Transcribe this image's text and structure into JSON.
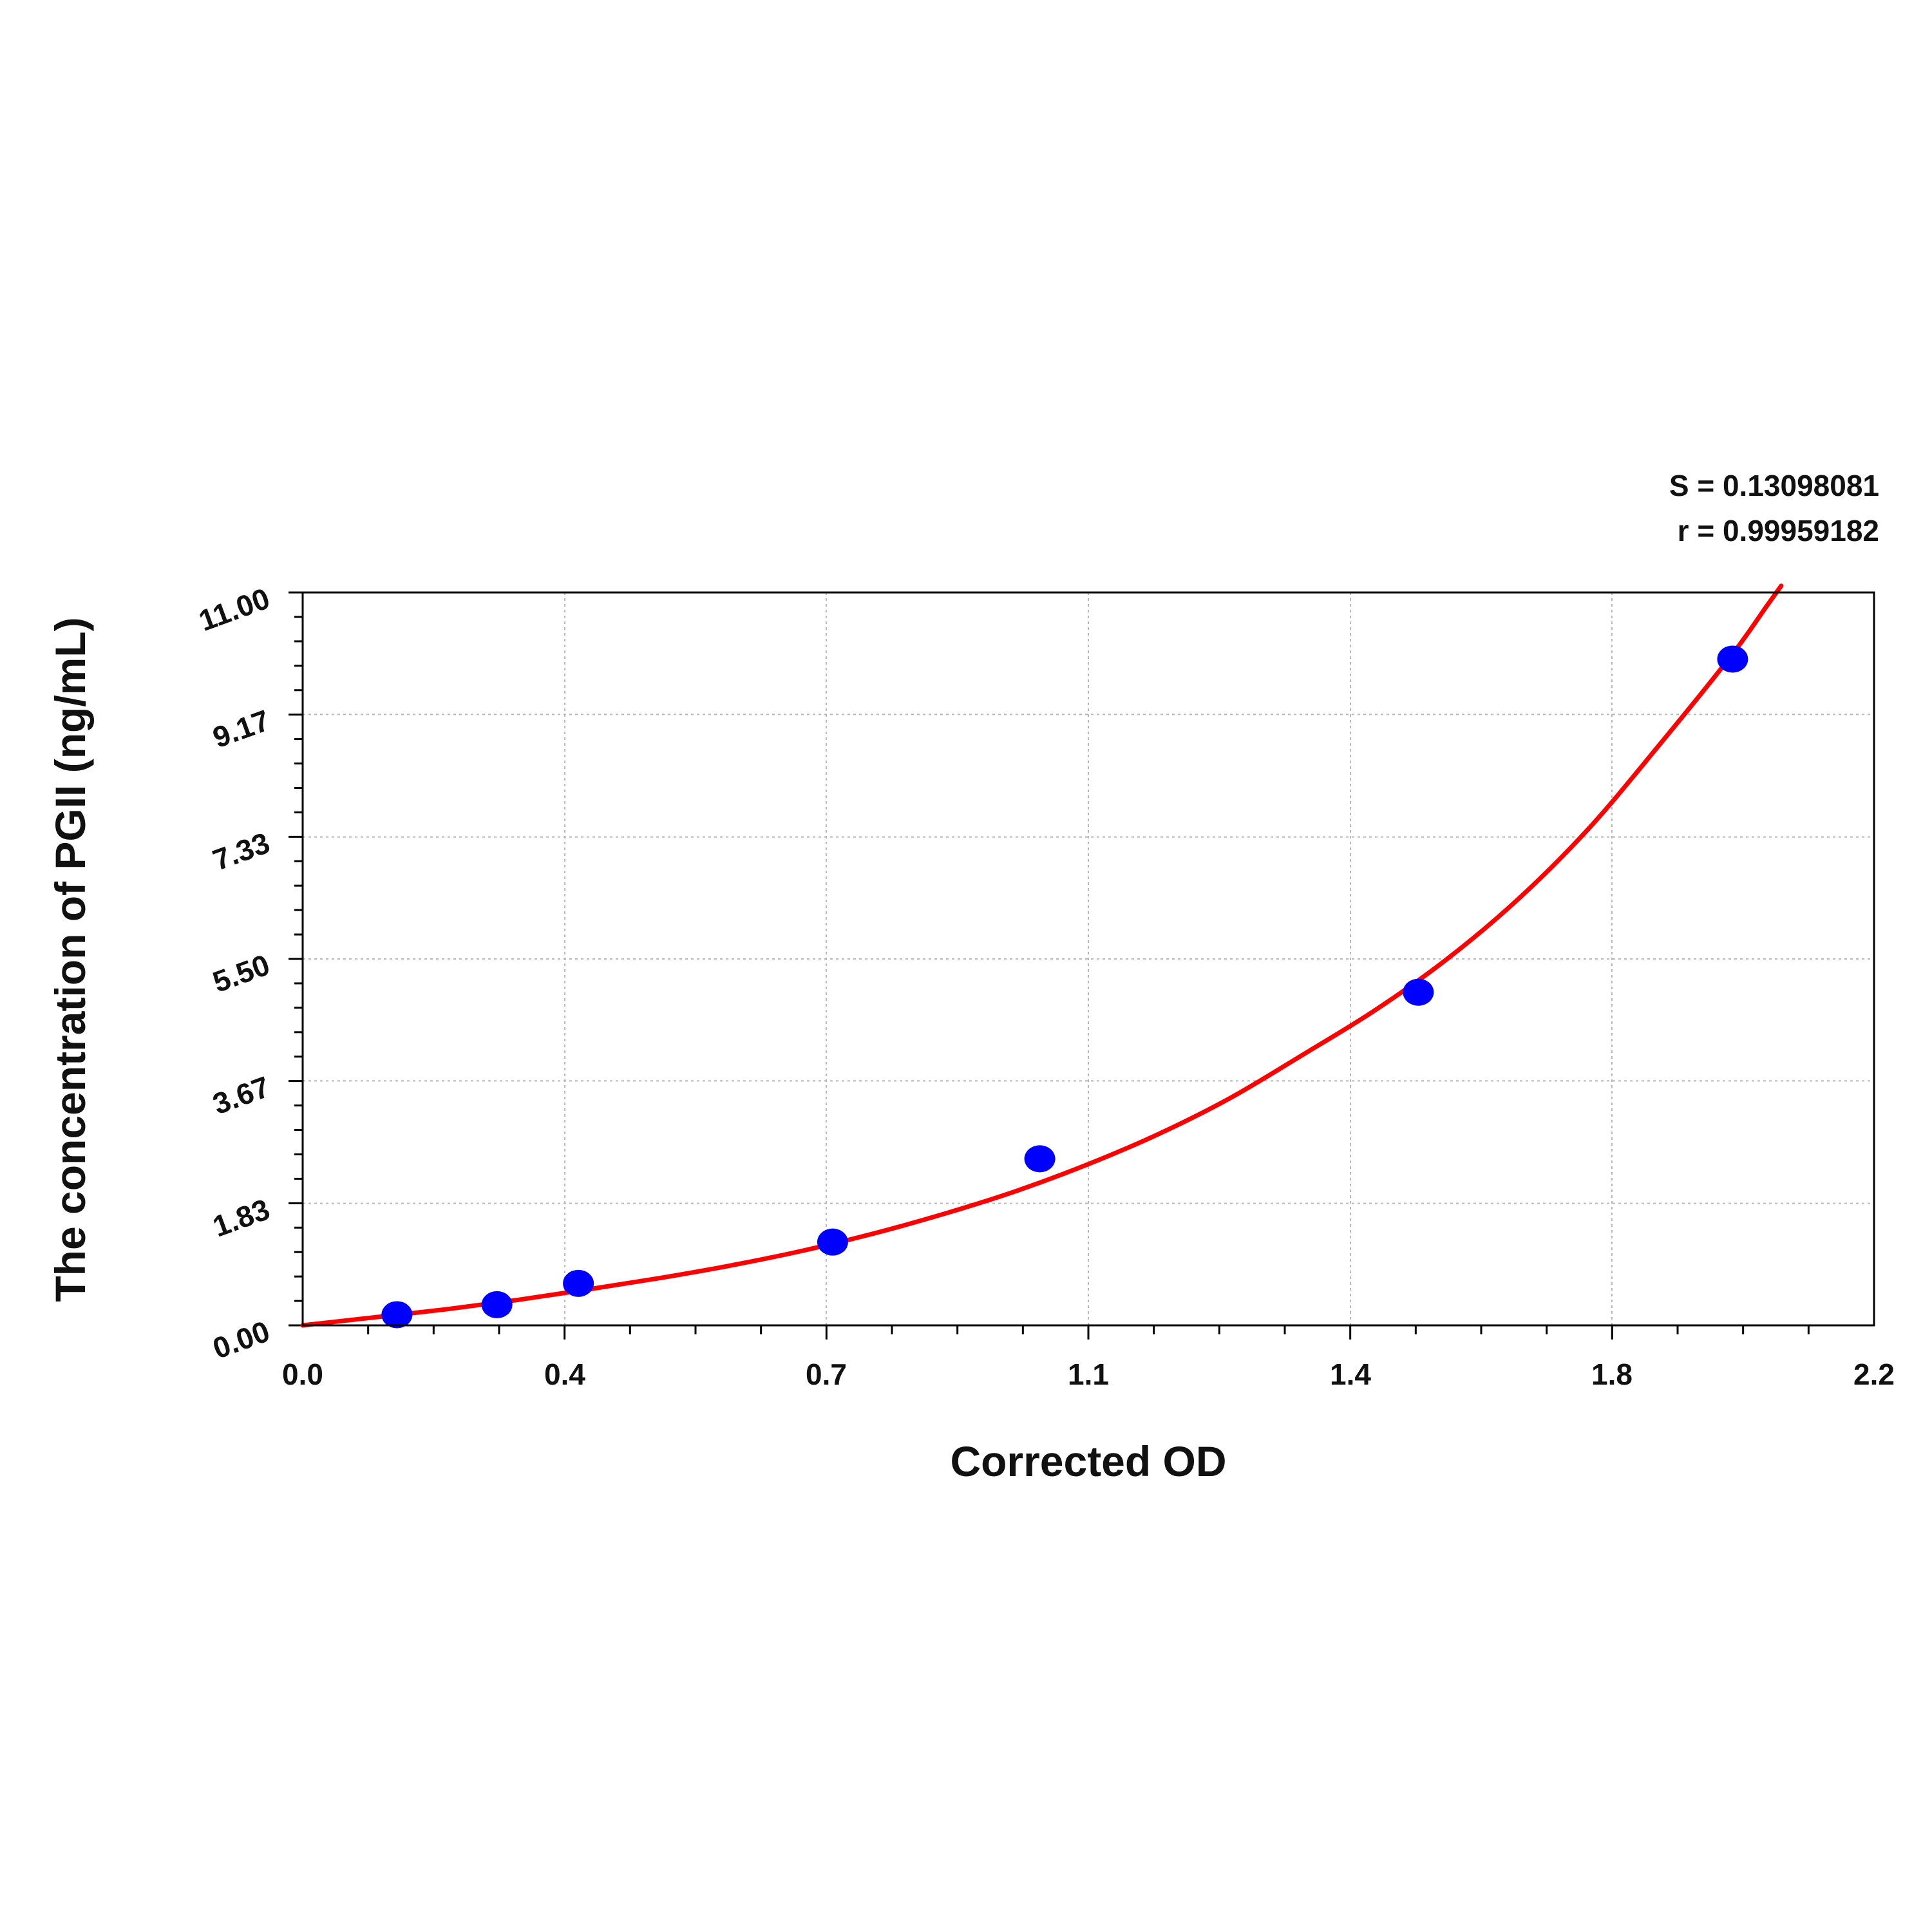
{
  "stats": {
    "s_line": "S = 0.13098081",
    "r_line": "r = 0.99959182"
  },
  "chart_data": {
    "type": "scatter",
    "xlabel": "Corrected OD",
    "ylabel": "The concentration of PGII (ng/mL)",
    "xlim": [
      0.0,
      2.2
    ],
    "ylim": [
      0.0,
      11.0
    ],
    "x_ticks": [
      "0.0",
      "0.4",
      "0.7",
      "1.1",
      "1.4",
      "1.8",
      "2.2"
    ],
    "x_tick_values": [
      0.0,
      0.367,
      0.733,
      1.1,
      1.467,
      1.833,
      2.2
    ],
    "y_ticks": [
      "0.00",
      "1.83",
      "3.67",
      "5.50",
      "7.33",
      "9.17",
      "11.00"
    ],
    "y_tick_values": [
      0.0,
      1.83,
      3.67,
      5.5,
      7.33,
      9.17,
      11.0
    ],
    "grid": true,
    "series": [
      {
        "kind": "points",
        "color": "#0000ff",
        "points": [
          {
            "x": 0.132,
            "y": 0.16
          },
          {
            "x": 0.272,
            "y": 0.31
          },
          {
            "x": 0.386,
            "y": 0.63
          },
          {
            "x": 0.742,
            "y": 1.25
          },
          {
            "x": 1.032,
            "y": 2.5
          },
          {
            "x": 1.562,
            "y": 5.0
          },
          {
            "x": 2.002,
            "y": 10.0
          }
        ]
      },
      {
        "kind": "fit-curve",
        "color": "#ff0000",
        "points": [
          {
            "x": 0.0,
            "y": 0.0
          },
          {
            "x": 0.1,
            "y": 0.12
          },
          {
            "x": 0.2,
            "y": 0.24
          },
          {
            "x": 0.3,
            "y": 0.38
          },
          {
            "x": 0.4,
            "y": 0.54
          },
          {
            "x": 0.5,
            "y": 0.71
          },
          {
            "x": 0.6,
            "y": 0.9
          },
          {
            "x": 0.7,
            "y": 1.12
          },
          {
            "x": 0.8,
            "y": 1.38
          },
          {
            "x": 0.9,
            "y": 1.68
          },
          {
            "x": 1.0,
            "y": 2.02
          },
          {
            "x": 1.1,
            "y": 2.42
          },
          {
            "x": 1.2,
            "y": 2.88
          },
          {
            "x": 1.3,
            "y": 3.42
          },
          {
            "x": 1.4,
            "y": 4.06
          },
          {
            "x": 1.5,
            "y": 4.72
          },
          {
            "x": 1.6,
            "y": 5.48
          },
          {
            "x": 1.7,
            "y": 6.38
          },
          {
            "x": 1.8,
            "y": 7.45
          },
          {
            "x": 1.9,
            "y": 8.72
          },
          {
            "x": 2.0,
            "y": 10.05
          },
          {
            "x": 2.05,
            "y": 10.8
          },
          {
            "x": 2.07,
            "y": 11.1
          }
        ]
      }
    ]
  }
}
